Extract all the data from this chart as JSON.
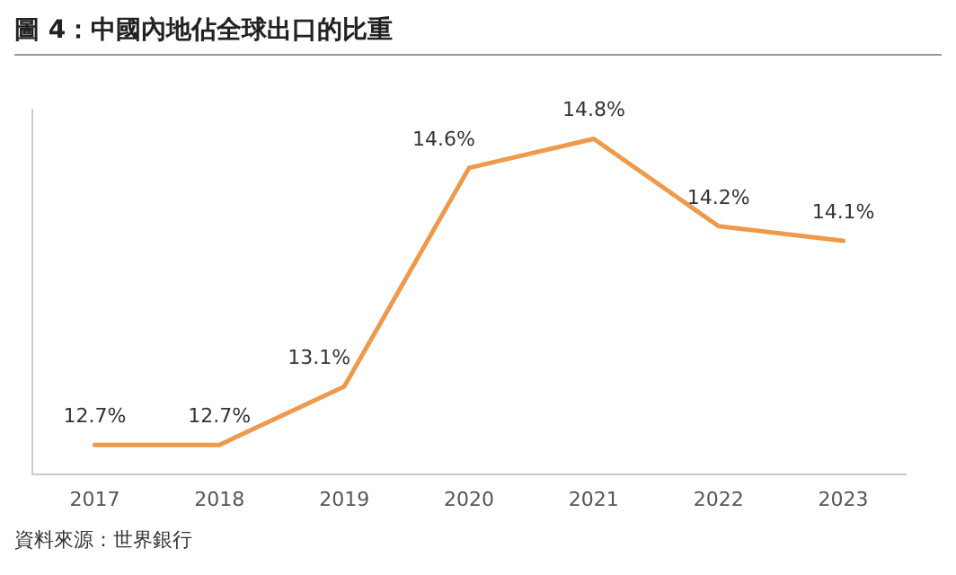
{
  "chart_data": {
    "type": "line",
    "title": "圖 4：中國內地佔全球出口的比重",
    "categories": [
      "2017",
      "2018",
      "2019",
      "2020",
      "2021",
      "2022",
      "2023"
    ],
    "series": [
      {
        "color": "#ee9a4d",
        "values": [
          12.7,
          12.7,
          13.1,
          14.6,
          14.8,
          14.2,
          14.1
        ],
        "value_labels": [
          "12.7%",
          "12.7%",
          "13.1%",
          "14.6%",
          "14.8%",
          "14.2%",
          "14.1%"
        ]
      }
    ],
    "grid": false,
    "legend": false,
    "marker": "none",
    "line_style": "solid",
    "annotations": [
      "資料來源：世界銀行"
    ]
  }
}
